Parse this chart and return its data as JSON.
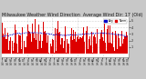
{
  "title": "Milwaukee Weather Wind Direction  Average Wind Dir: 17 (Old)",
  "bg_color": "#c8c8c8",
  "plot_bg_color": "#ffffff",
  "bar_color": "#dd0000",
  "line_color": "#0000cc",
  "ylim": [
    -0.5,
    5.5
  ],
  "yticks": [
    1,
    2,
    3,
    4,
    5
  ],
  "n_points": 365,
  "seed": 7,
  "bar_mean": 2.5,
  "bar_std": 1.3,
  "avg_smooth": 15,
  "title_fontsize": 3.5,
  "tick_fontsize": 2.5,
  "legend_labels": [
    "Avg",
    "Norm"
  ],
  "legend_colors": [
    "#0000cc",
    "#dd0000"
  ],
  "n_vgrid": 4,
  "grid_color": "#aaaaaa",
  "spine_color": "#888888"
}
